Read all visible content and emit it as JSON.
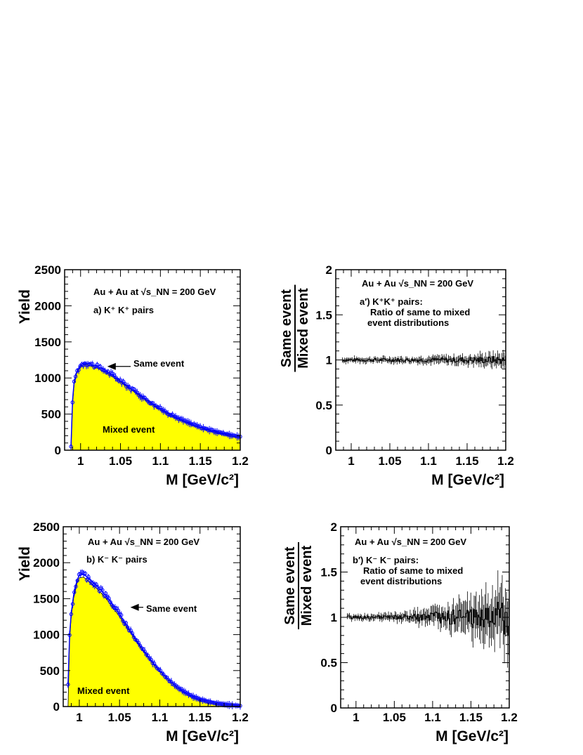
{
  "chart_data": [
    {
      "id": "a",
      "type": "line",
      "ylabel": "Yield",
      "xlabel": "M [GeV/c²]",
      "xlim": [
        0.98,
        1.2
      ],
      "ylim": [
        0,
        2500
      ],
      "xticks": [
        1,
        1.05,
        1.1,
        1.15,
        1.2
      ],
      "xtick_labels": [
        "1",
        "1.05",
        "1.1",
        "1.15",
        "1.2"
      ],
      "yticks": [
        0,
        500,
        1000,
        1500,
        2000,
        2500
      ],
      "ytick_labels": [
        "0",
        "500",
        "1000",
        "1500",
        "2000",
        "2500"
      ],
      "annotation_collision": "Au + Au at √s_NN = 200 GeV",
      "annotation_pairs": "a) K⁺ K⁺ pairs",
      "label_same": "Same event",
      "label_mixed": "Mixed event",
      "arrow_at": [
        1.03,
        1160
      ],
      "fill_color": "#ffff00",
      "marker_color": "#0000ff",
      "series": [
        {
          "name": "Same event",
          "x": [
            0.988,
            0.99,
            0.992,
            0.995,
            1.0,
            1.005,
            1.01,
            1.02,
            1.03,
            1.04,
            1.05,
            1.06,
            1.07,
            1.08,
            1.09,
            1.1,
            1.11,
            1.12,
            1.13,
            1.14,
            1.15,
            1.16,
            1.17,
            1.18,
            1.19,
            1.2
          ],
          "values": [
            50,
            700,
            950,
            1080,
            1180,
            1210,
            1200,
            1160,
            1110,
            1040,
            960,
            880,
            800,
            720,
            645,
            575,
            510,
            455,
            405,
            360,
            320,
            285,
            255,
            230,
            205,
            185
          ]
        },
        {
          "name": "Mixed event",
          "x": [
            0.988,
            0.99,
            0.992,
            0.995,
            1.0,
            1.005,
            1.01,
            1.02,
            1.03,
            1.04,
            1.05,
            1.06,
            1.07,
            1.08,
            1.09,
            1.1,
            1.11,
            1.12,
            1.13,
            1.14,
            1.15,
            1.16,
            1.17,
            1.18,
            1.19,
            1.2
          ],
          "values": [
            0,
            650,
            920,
            1060,
            1160,
            1190,
            1180,
            1140,
            1090,
            1020,
            945,
            865,
            785,
            705,
            630,
            560,
            498,
            442,
            395,
            352,
            312,
            278,
            248,
            222,
            200,
            180
          ]
        }
      ]
    },
    {
      "id": "a_prime",
      "type": "line",
      "ylabel": "Same event / Mixed event",
      "ylabel_num": "Same event",
      "ylabel_den": "Mixed event",
      "xlabel": "M [GeV/c²]",
      "xlim": [
        0.98,
        1.2
      ],
      "ylim": [
        0,
        2
      ],
      "xticks": [
        1,
        1.05,
        1.1,
        1.15,
        1.2
      ],
      "xtick_labels": [
        "1",
        "1.05",
        "1.1",
        "1.15",
        "1.2"
      ],
      "yticks": [
        0,
        0.5,
        1,
        1.5,
        2
      ],
      "ytick_labels": [
        "0",
        "0.5",
        "1",
        "1.5",
        "2"
      ],
      "annotation_collision": "Au + Au √s_NN = 200 GeV",
      "annotation_pairs": "a′) K⁺K⁺ pairs:",
      "annotation_desc1": "Ratio of same to mixed",
      "annotation_desc2": "event distributions",
      "ratio_mean": 1.0,
      "ratio_spread_low_mass": 0.03,
      "ratio_spread_high_mass": 0.08
    },
    {
      "id": "b",
      "type": "line",
      "ylabel": "Yield",
      "xlabel": "M [GeV/c²]",
      "xlim": [
        0.98,
        1.2
      ],
      "ylim": [
        0,
        2500
      ],
      "xticks": [
        1,
        1.05,
        1.1,
        1.15,
        1.2
      ],
      "xtick_labels": [
        "1",
        "1.05",
        "1.1",
        "1.15",
        "1.2"
      ],
      "yticks": [
        0,
        500,
        1000,
        1500,
        2000,
        2500
      ],
      "ytick_labels": [
        "0",
        "500",
        "1000",
        "1500",
        "2000",
        "2500"
      ],
      "annotation_collision": "Au + Au √s_NN = 200 GeV",
      "annotation_pairs": "b) K⁻ K⁻ pairs",
      "label_same": "Same event",
      "label_mixed": "Mixed event",
      "arrow_at": [
        1.06,
        1380
      ],
      "fill_color": "#ffff00",
      "marker_color": "#0000ff",
      "series": [
        {
          "name": "Same event",
          "x": [
            0.986,
            0.988,
            0.99,
            0.993,
            0.997,
            1.0,
            1.005,
            1.01,
            1.02,
            1.03,
            1.04,
            1.05,
            1.06,
            1.07,
            1.08,
            1.09,
            1.1,
            1.11,
            1.12,
            1.13,
            1.14,
            1.15,
            1.16,
            1.17,
            1.18,
            1.19,
            1.2
          ],
          "values": [
            300,
            1000,
            1300,
            1550,
            1750,
            1830,
            1840,
            1800,
            1700,
            1580,
            1440,
            1280,
            1110,
            940,
            780,
            630,
            500,
            385,
            285,
            205,
            145,
            100,
            70,
            45,
            30,
            18,
            10
          ]
        },
        {
          "name": "Mixed event",
          "x": [
            0.986,
            0.988,
            0.99,
            0.993,
            0.997,
            1.0,
            1.005,
            1.01,
            1.02,
            1.03,
            1.04,
            1.05,
            1.06,
            1.07,
            1.08,
            1.09,
            1.1,
            1.11,
            1.12,
            1.13,
            1.14,
            1.15,
            1.16,
            1.17,
            1.18,
            1.19,
            1.2
          ],
          "values": [
            0,
            950,
            1260,
            1510,
            1710,
            1790,
            1800,
            1760,
            1660,
            1545,
            1405,
            1250,
            1085,
            920,
            765,
            618,
            490,
            377,
            280,
            200,
            142,
            98,
            68,
            44,
            29,
            18,
            10
          ]
        }
      ]
    },
    {
      "id": "b_prime",
      "type": "line",
      "ylabel": "Same event / Mixed event",
      "ylabel_num": "Same event",
      "ylabel_den": "Mixed event",
      "xlabel": "M [GeV/c²]",
      "xlim": [
        0.98,
        1.2
      ],
      "ylim": [
        0,
        2
      ],
      "xticks": [
        1,
        1.05,
        1.1,
        1.15,
        1.2
      ],
      "xtick_labels": [
        "1",
        "1.05",
        "1.1",
        "1.15",
        "1.2"
      ],
      "yticks": [
        0,
        0.5,
        1,
        1.5,
        2
      ],
      "ytick_labels": [
        "0",
        "0.5",
        "1",
        "1.5",
        "2"
      ],
      "annotation_collision": "Au + Au √s_NN = 200 GeV",
      "annotation_pairs": "b′) K⁻ K⁻ pairs:",
      "annotation_desc1": "Ratio of same to mixed",
      "annotation_desc2": "event distributions",
      "ratio_mean": 1.0,
      "ratio_spread_low_mass": 0.03,
      "ratio_spread_high_mass": 0.35
    }
  ]
}
